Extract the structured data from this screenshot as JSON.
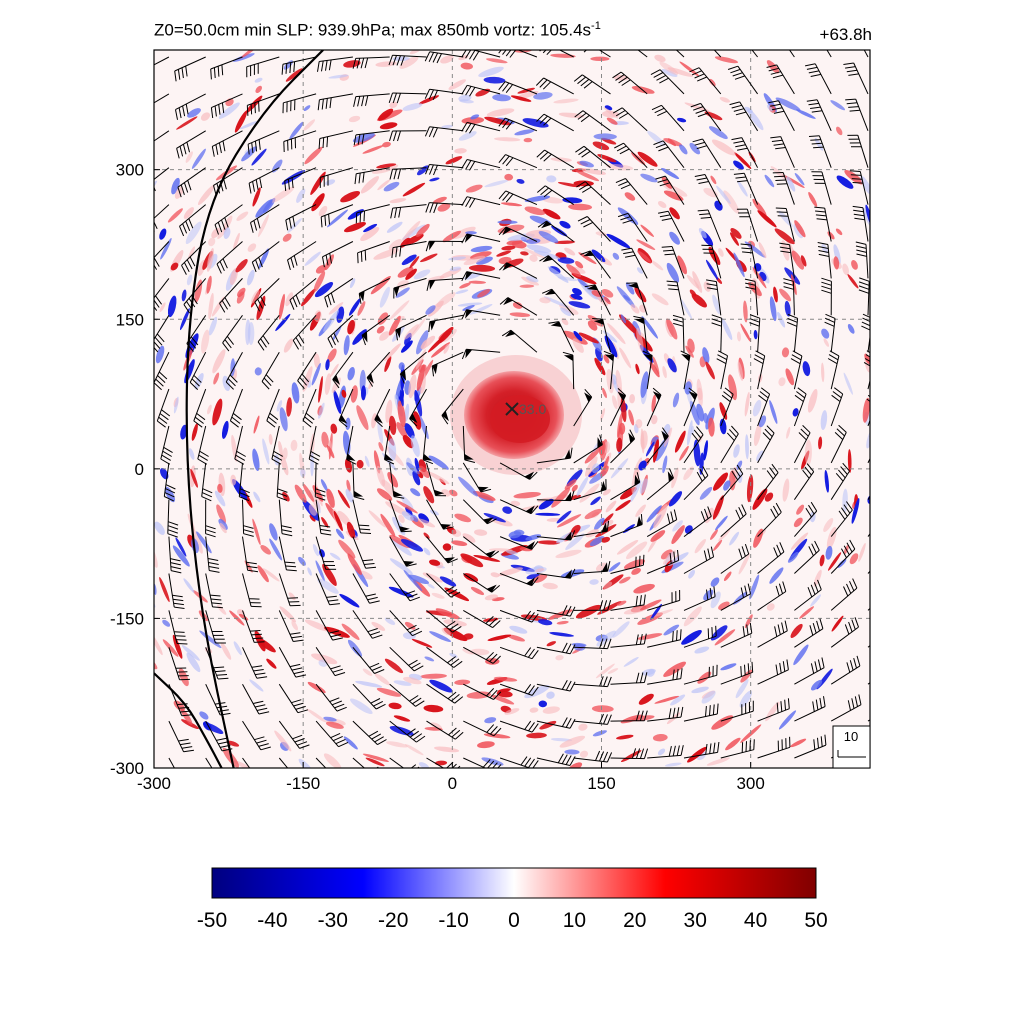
{
  "title": {
    "main": "Z0=50.0cm  min SLP: 939.9hPa; max 850mb vortz: 105.4s",
    "unit_exponent": "-1"
  },
  "forecast_time": "+63.8h",
  "center_marker_label": "33.0",
  "reference_vector_label": "10",
  "colors": {
    "negative_max": "#000080",
    "negative_mid": "#0000ff",
    "zero": "#ffffff",
    "positive_mid": "#ff0000",
    "positive_max": "#800000"
  },
  "chart_data": {
    "type": "heatmap",
    "xlim": [
      -300,
      420
    ],
    "ylim": [
      -300,
      420
    ],
    "x_ticks": [
      -300,
      -150,
      0,
      150,
      300
    ],
    "y_ticks": [
      -300,
      -150,
      0,
      150,
      300
    ],
    "grid": true,
    "storm_center": [
      60,
      60
    ],
    "colorbar": {
      "min": -50,
      "max": 50,
      "ticks": [
        -50,
        -40,
        -30,
        -20,
        -10,
        0,
        10,
        20,
        30,
        40,
        50
      ]
    },
    "contour_lines": [
      [
        [
          -130,
          420
        ],
        [
          -190,
          360
        ],
        [
          -245,
          270
        ],
        [
          -266,
          150
        ],
        [
          -268,
          0
        ],
        [
          -252,
          -150
        ],
        [
          -220,
          -300
        ]
      ],
      [
        [
          -300,
          -205
        ],
        [
          -268,
          -235
        ],
        [
          -248,
          -270
        ],
        [
          -232,
          -300
        ]
      ]
    ],
    "wind_barbs": true
  }
}
